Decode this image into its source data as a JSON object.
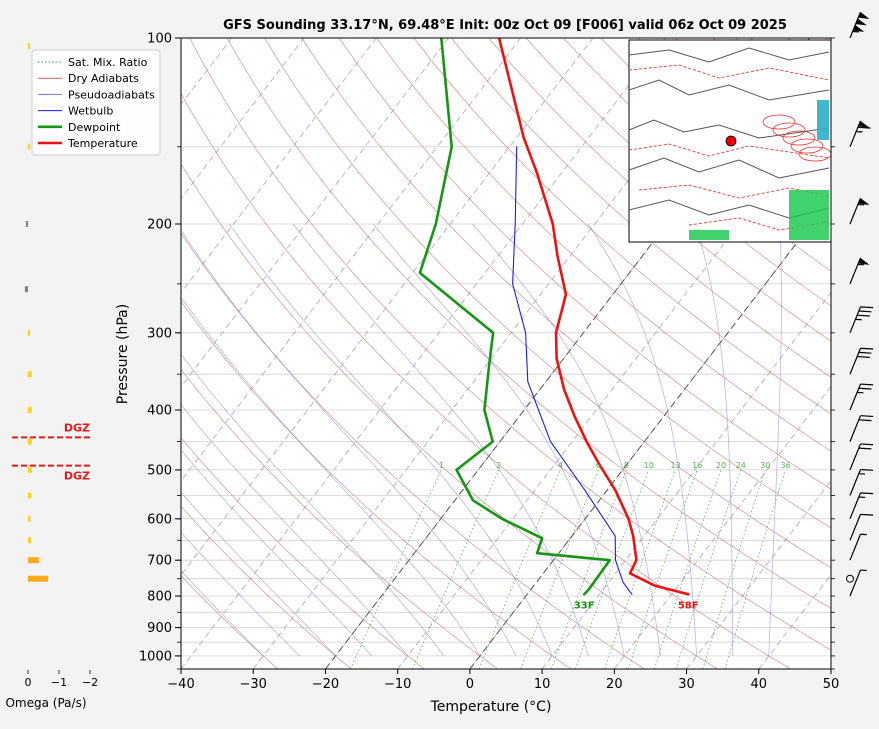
{
  "chart_data": {
    "type": "line",
    "title": "GFS Sounding 33.17°N, 69.48°E Init: 00z Oct 09 [F006] valid 06z Oct 09 2025",
    "xlabel": "Temperature (°C)",
    "ylabel": "Pressure (hPa)",
    "xlim": [
      -40,
      50
    ],
    "ylim": [
      1050,
      100
    ],
    "y_scale": "log",
    "x_ticks": [
      -40,
      -30,
      -20,
      -10,
      0,
      10,
      20,
      30,
      40,
      50
    ],
    "y_ticks": [
      100,
      200,
      300,
      400,
      500,
      600,
      700,
      800,
      900,
      1000
    ],
    "skew": "skew-T log-p",
    "legend_position": "top-left",
    "legend": [
      {
        "label": "Sat. Mix. Ratio",
        "color": "#2ca02c",
        "style": "dotted"
      },
      {
        "label": "Dry Adiabats",
        "color": "#c86464",
        "style": "solid"
      },
      {
        "label": "Pseudoadiabats",
        "color": "#7878dc",
        "style": "solid"
      },
      {
        "label": "Wetbulb",
        "color": "#1a1aff",
        "style": "solid"
      },
      {
        "label": "Dewpoint",
        "color": "#149614",
        "style": "solid"
      },
      {
        "label": "Temperature",
        "color": "#ee1111",
        "style": "solid"
      }
    ],
    "series": [
      {
        "name": "Temperature",
        "color": "#ee1111",
        "points": [
          [
            795,
            22.3
          ],
          [
            770,
            16.8
          ],
          [
            735,
            12.0
          ],
          [
            700,
            11.5
          ],
          [
            640,
            8.5
          ],
          [
            600,
            6.0
          ],
          [
            540,
            1.2
          ],
          [
            490,
            -3.8
          ],
          [
            450,
            -8.0
          ],
          [
            410,
            -12.3
          ],
          [
            370,
            -16.7
          ],
          [
            330,
            -21.0
          ],
          [
            300,
            -23.8
          ],
          [
            260,
            -26.5
          ],
          [
            225,
            -31.8
          ],
          [
            200,
            -35.8
          ],
          [
            165,
            -43.5
          ],
          [
            145,
            -49.0
          ],
          [
            100,
            -63.0
          ]
        ]
      },
      {
        "name": "Dewpoint",
        "color": "#149614",
        "points": [
          [
            795,
            7.9
          ],
          [
            780,
            8.0
          ],
          [
            700,
            7.8
          ],
          [
            682,
            -3.0
          ],
          [
            645,
            -3.9
          ],
          [
            600,
            -11.5
          ],
          [
            560,
            -17.5
          ],
          [
            500,
            -23.0
          ],
          [
            450,
            -21.0
          ],
          [
            400,
            -25.5
          ],
          [
            340,
            -29.5
          ],
          [
            300,
            -32.5
          ],
          [
            240,
            -49.0
          ],
          [
            200,
            -52.0
          ],
          [
            150,
            -58.0
          ],
          [
            100,
            -71.0
          ]
        ]
      },
      {
        "name": "Wetbulb",
        "color": "#1a1aff",
        "points": [
          [
            795,
            14.5
          ],
          [
            760,
            12.0
          ],
          [
            700,
            8.6
          ],
          [
            640,
            6.0
          ],
          [
            540,
            -3.0
          ],
          [
            450,
            -13.0
          ],
          [
            360,
            -22.5
          ],
          [
            300,
            -28.0
          ],
          [
            250,
            -35.0
          ],
          [
            200,
            -41.0
          ],
          [
            150,
            -49.0
          ]
        ]
      }
    ],
    "mixing_ratio_labels": [
      "1",
      "2",
      "4",
      "6",
      "8",
      "10",
      "13",
      "16",
      "20",
      "24",
      "30",
      "36"
    ],
    "surface_labels": [
      {
        "text": "33F",
        "color": "#149614"
      },
      {
        "text": "58F",
        "color": "#ee1111"
      }
    ],
    "omega": {
      "xlabel": "Omega (Pa/s)",
      "x_ticks": [
        "0",
        "−1",
        "−2"
      ],
      "values": [
        {
          "p": 103,
          "omega": -0.05,
          "color": "#ffd21a"
        },
        {
          "p": 150,
          "omega": -0.05,
          "color": "#ffd21a"
        },
        {
          "p": 200,
          "omega": 0.05,
          "color": "#808080"
        },
        {
          "p": 255,
          "omega": 0.1,
          "color": "#808080"
        },
        {
          "p": 300,
          "omega": -0.03,
          "color": "#ffd21a"
        },
        {
          "p": 350,
          "omega": -0.12,
          "color": "#ffd21a"
        },
        {
          "p": 400,
          "omega": -0.12,
          "color": "#ffd21a"
        },
        {
          "p": 450,
          "omega": -0.12,
          "color": "#ffd21a"
        },
        {
          "p": 500,
          "omega": -0.12,
          "color": "#ffd21a"
        },
        {
          "p": 550,
          "omega": -0.1,
          "color": "#ffd21a"
        },
        {
          "p": 600,
          "omega": -0.08,
          "color": "#ffd21a"
        },
        {
          "p": 650,
          "omega": -0.1,
          "color": "#ffd21a"
        },
        {
          "p": 700,
          "omega": -0.35,
          "color": "#ffaa1a"
        },
        {
          "p": 750,
          "omega": -0.65,
          "color": "#ffaa1a"
        }
      ],
      "dgz": [
        {
          "label": "DGZ",
          "p": 443
        },
        {
          "label": "DGZ",
          "p": 492
        }
      ]
    },
    "wind_barbs_pressure": [
      100,
      150,
      200,
      250,
      300,
      350,
      400,
      450,
      500,
      550,
      600,
      650,
      700,
      750,
      800
    ]
  }
}
